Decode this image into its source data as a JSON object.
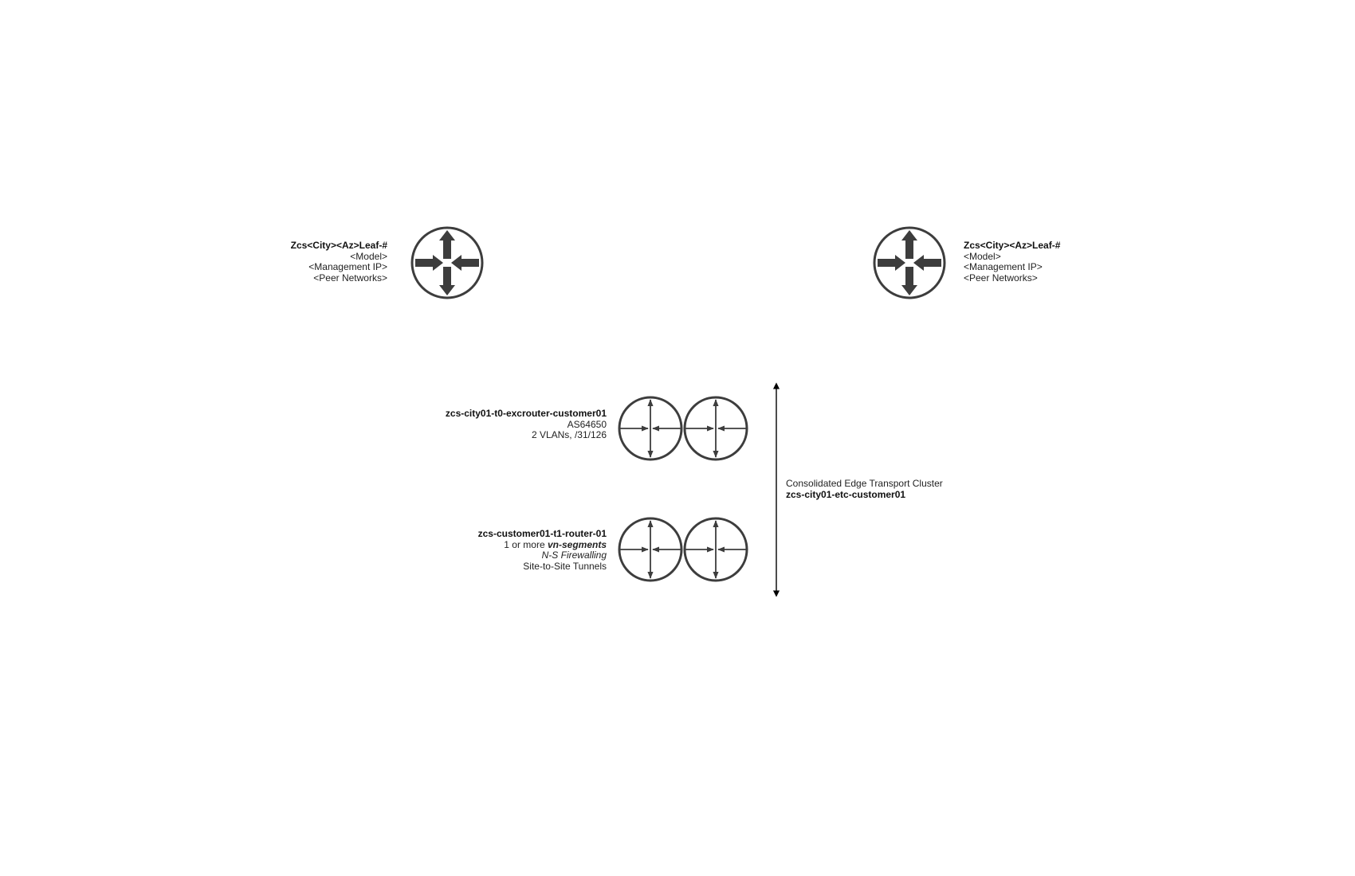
{
  "colors": {
    "icon_stroke": "#3d3d3d",
    "icon_fill": "#ffffff",
    "text": "#222222",
    "arrow": "#000000"
  },
  "leaf_left": {
    "icon": "router-icon",
    "name": "Zcs<City><Az>Leaf-#",
    "model": "<Model>",
    "mgmt_ip": "<Management IP>",
    "peer_networks": "<Peer Networks>"
  },
  "leaf_right": {
    "icon": "router-icon",
    "name": "Zcs<City><Az>Leaf-#",
    "model": "<Model>",
    "mgmt_ip": "<Management IP>",
    "peer_networks": "<Peer Networks>"
  },
  "t0_router": {
    "icon": "logical-router-icon",
    "name": "zcs-city01-t0-excrouter-customer01",
    "asn": "AS64650",
    "vlans": "2 VLANs, /31/126"
  },
  "t1_router": {
    "icon": "logical-router-icon",
    "name": "zcs-customer01-t1-router-01",
    "segments_prefix": "1 or more ",
    "segments_em": "vn-segments",
    "firewalling": "N-S Firewalling",
    "tunnels": "Site-to-Site Tunnels"
  },
  "edge_cluster": {
    "title": "Consolidated Edge Transport Cluster",
    "name": "zcs-city01-etc-customer01"
  }
}
